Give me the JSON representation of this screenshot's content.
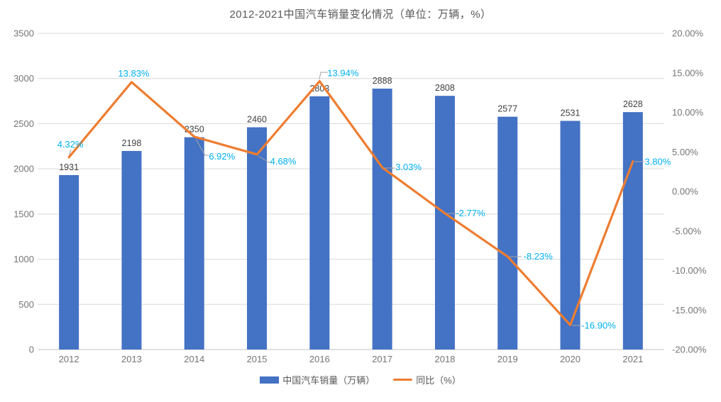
{
  "chart_data": {
    "type": "combo-bar-line",
    "title": "2012-2021中国汽车销量变化情况（单位：万辆，%）",
    "categories": [
      "2012",
      "2013",
      "2014",
      "2015",
      "2016",
      "2017",
      "2018",
      "2019",
      "2020",
      "2021"
    ],
    "series": [
      {
        "name": "中国汽车销量（万辆）",
        "type": "bar",
        "axis": "left",
        "color": "#4472C4",
        "values": [
          1931,
          2198,
          2350,
          2460,
          2803,
          2888,
          2808,
          2577,
          2531,
          2628
        ],
        "point_labels": [
          "1931",
          "2198",
          "2350",
          "2460",
          "2803",
          "2888",
          "2808",
          "2577",
          "2531",
          "2628"
        ],
        "label_color": "#404040"
      },
      {
        "name": "同比（%）",
        "type": "line",
        "axis": "right",
        "color": "#ED7D31",
        "values": [
          4.32,
          13.83,
          6.92,
          4.68,
          13.94,
          3.03,
          -2.77,
          -8.23,
          -16.9,
          3.8
        ],
        "point_labels": [
          "4.32%",
          "13.83%",
          "6.92%",
          "4.68%",
          "13.94%",
          "3.03%",
          "-2.77%",
          "-8.23%",
          "-16.90%",
          "3.80%"
        ],
        "label_color": "#00B0F0"
      }
    ],
    "left_axis": {
      "min": 0,
      "max": 3500,
      "step": 500,
      "tick_labels": [
        "0",
        "500",
        "1000",
        "1500",
        "2000",
        "2500",
        "3000",
        "3500"
      ]
    },
    "right_axis": {
      "min": -20,
      "max": 20,
      "step": 5,
      "tick_labels": [
        "20.00%",
        "15.00%",
        "10.00%",
        "5.00%",
        "0.00%",
        "-5.00%",
        "-10.00%",
        "-15.00%",
        "-20.00%"
      ]
    },
    "grid": true,
    "legend_position": "bottom",
    "colors": {
      "grid": "#D9D9D9",
      "axis_line": "#C6C6C6",
      "tick_text": "#757575",
      "leader": "#A6A6A6",
      "title_text": "#595959"
    }
  }
}
